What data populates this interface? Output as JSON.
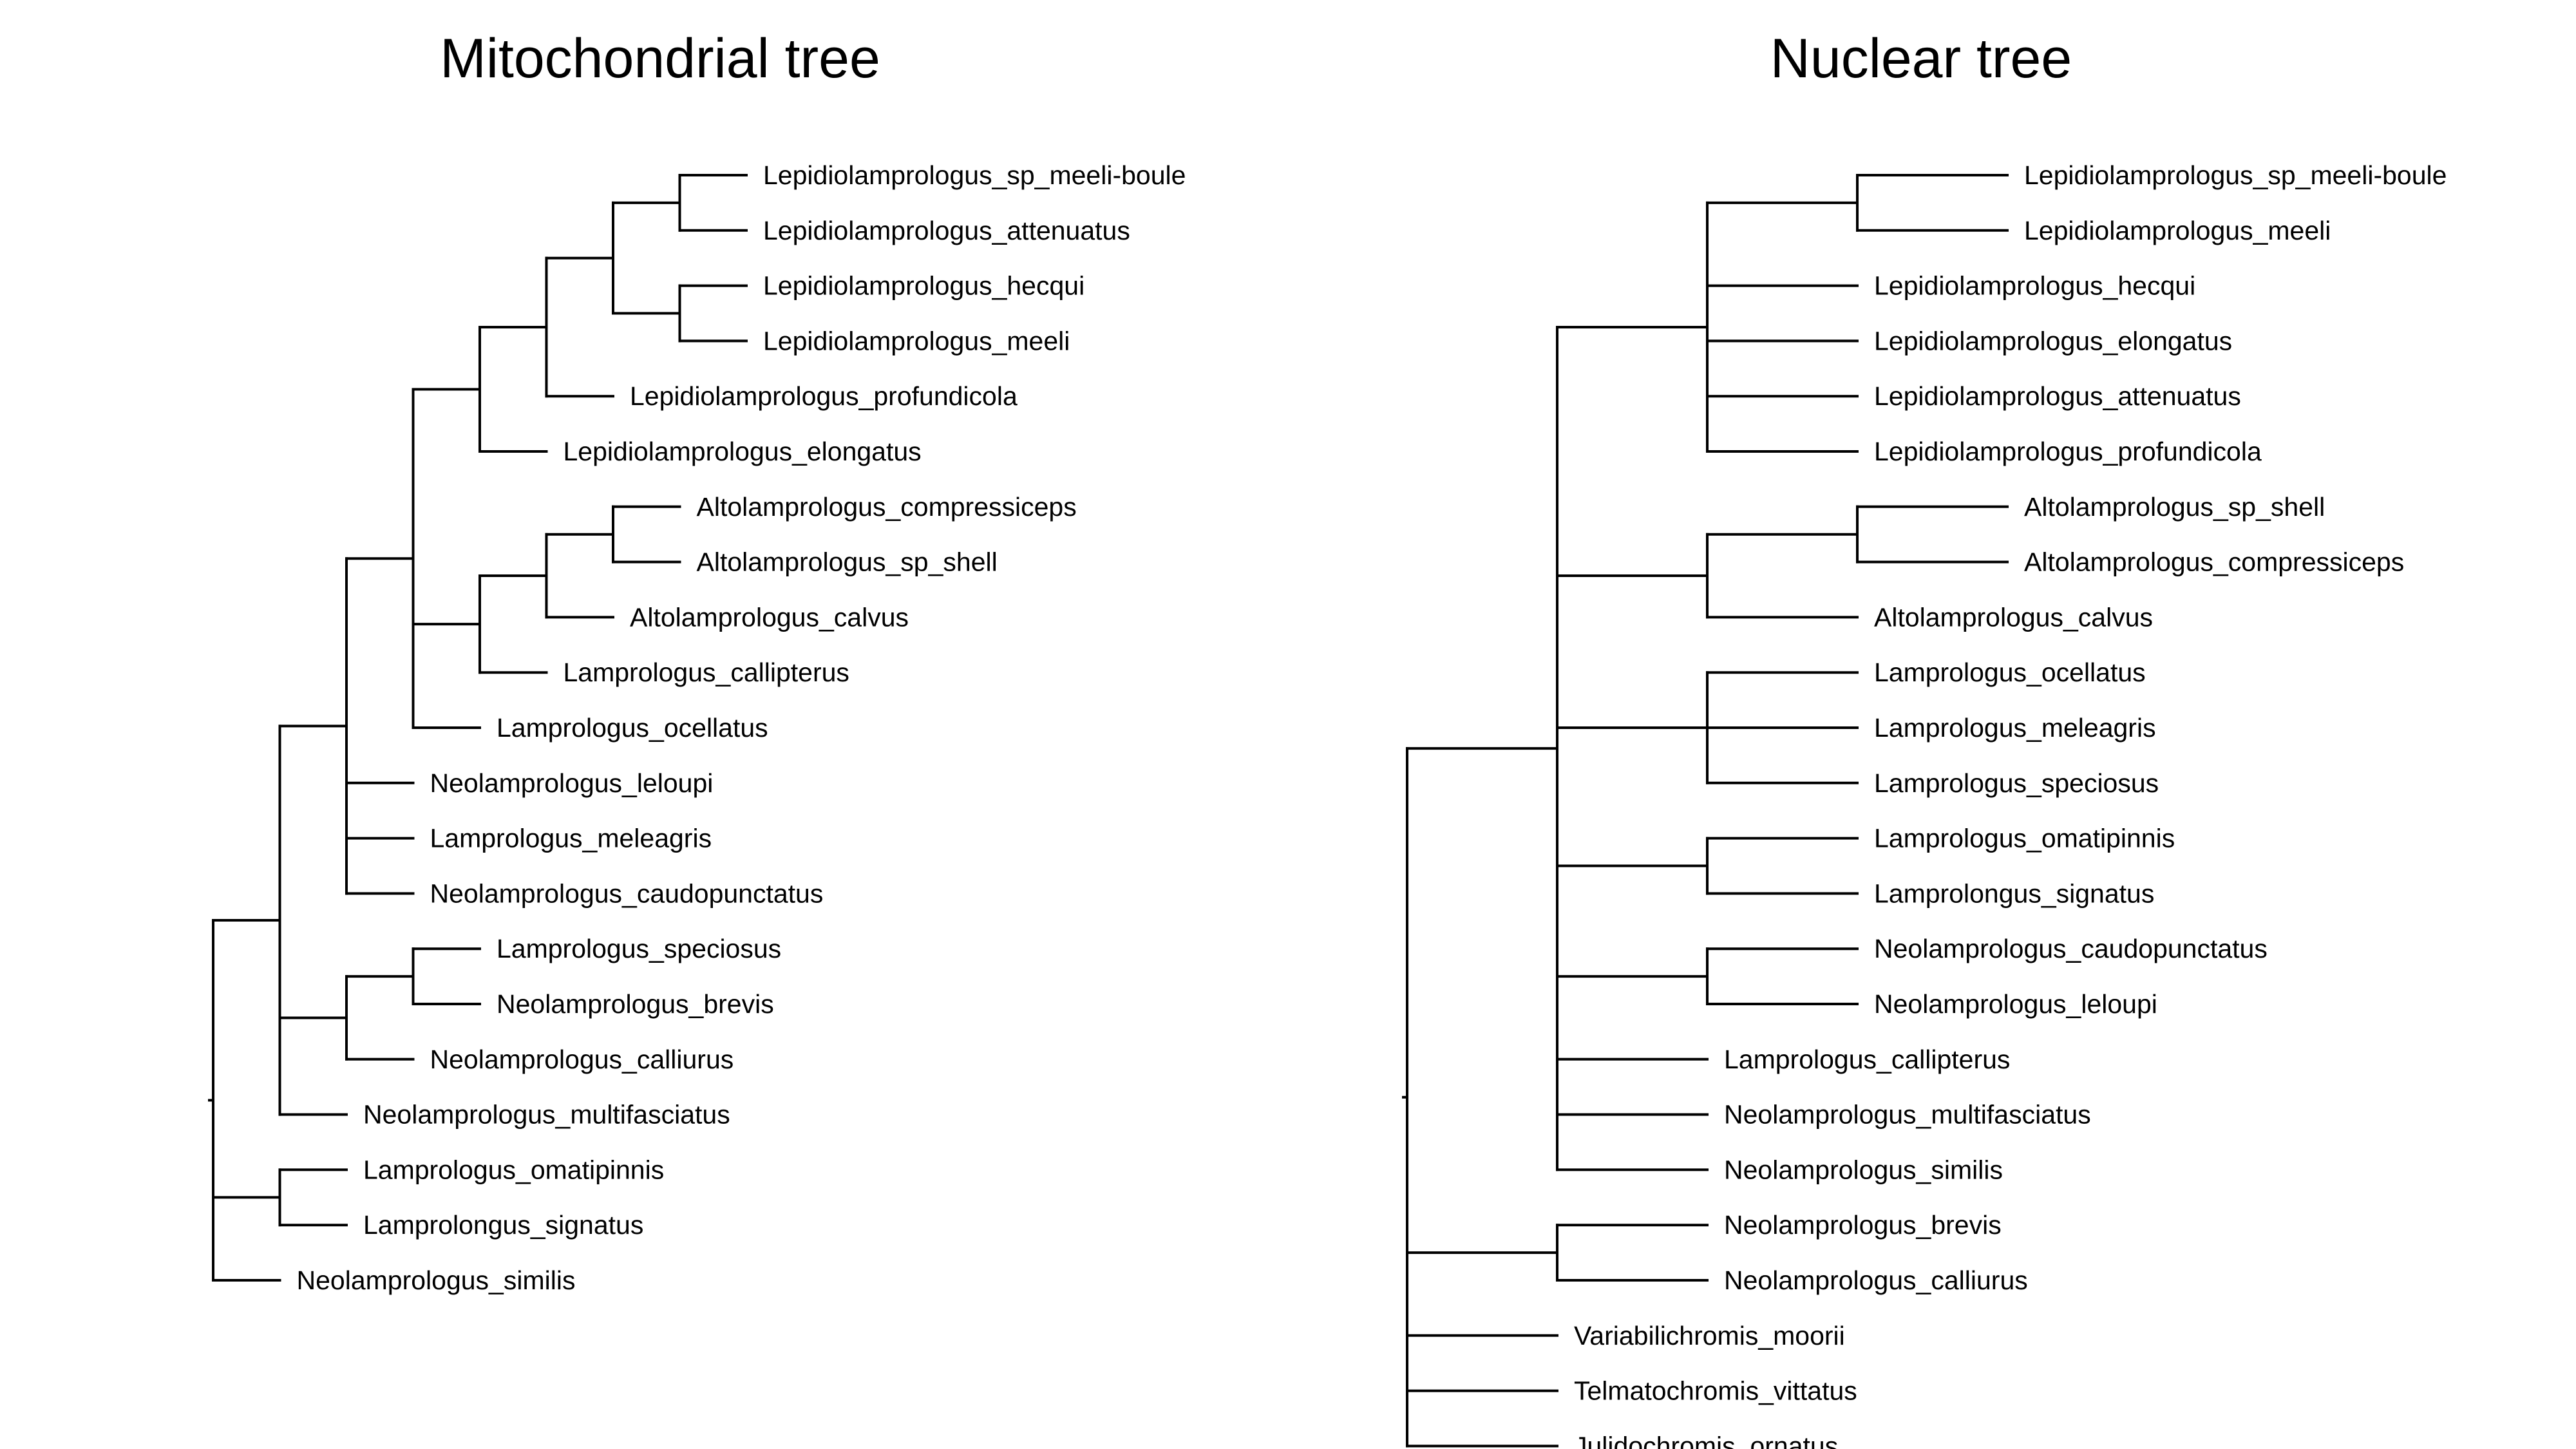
{
  "figure": {
    "panels": [
      {
        "id": "mito",
        "title": "Mitochondrial tree",
        "tree": {
          "c": [
            {
              "c": [
                {
                  "c": [
                    {
                      "c": [
                        {
                          "c": [
                            {
                              "c": [
                                {
                                  "c": [
                                    {
                                      "c": [
                                        {
                                          "n": "Lepidiolamprologus_sp_meeli-boule"
                                        },
                                        {
                                          "n": "Lepidiolamprologus_attenuatus"
                                        }
                                      ]
                                    },
                                    {
                                      "c": [
                                        {
                                          "n": "Lepidiolamprologus_hecqui"
                                        },
                                        {
                                          "n": "Lepidiolamprologus_meeli"
                                        }
                                      ]
                                    }
                                  ]
                                },
                                {
                                  "n": "Lepidiolamprologus_profundicola"
                                }
                              ]
                            },
                            {
                              "n": "Lepidiolamprologus_elongatus"
                            }
                          ]
                        },
                        {
                          "c": [
                            {
                              "c": [
                                {
                                  "c": [
                                    {
                                      "n": "Altolamprologus_compressiceps"
                                    },
                                    {
                                      "n": "Altolamprologus_sp_shell"
                                    }
                                  ]
                                },
                                {
                                  "n": "Altolamprologus_calvus"
                                }
                              ]
                            },
                            {
                              "n": "Lamprologus_callipterus"
                            }
                          ]
                        },
                        {
                          "n": "Lamprologus_ocellatus"
                        }
                      ]
                    },
                    {
                      "n": "Neolamprologus_leloupi"
                    },
                    {
                      "n": "Lamprologus_meleagris"
                    },
                    {
                      "n": "Neolamprologus_caudopunctatus"
                    }
                  ]
                },
                {
                  "c": [
                    {
                      "c": [
                        {
                          "n": "Lamprologus_speciosus"
                        },
                        {
                          "n": "Neolamprologus_brevis"
                        }
                      ]
                    },
                    {
                      "n": "Neolamprologus_calliurus"
                    }
                  ]
                },
                {
                  "n": "Neolamprologus_multifasciatus"
                }
              ]
            },
            {
              "c": [
                {
                  "n": "Lamprologus_omatipinnis"
                },
                {
                  "n": "Lamprolongus_signatus"
                }
              ]
            },
            {
              "n": "Neolamprologus_similis"
            }
          ]
        }
      },
      {
        "id": "nuclear",
        "title": "Nuclear tree",
        "tree": {
          "c": [
            {
              "c": [
                {
                  "c": [
                    {
                      "c": [
                        {
                          "n": "Lepidiolamprologus_sp_meeli-boule"
                        },
                        {
                          "n": "Lepidiolamprologus_meeli"
                        }
                      ]
                    },
                    {
                      "n": "Lepidiolamprologus_hecqui"
                    },
                    {
                      "n": "Lepidiolamprologus_elongatus"
                    },
                    {
                      "n": "Lepidiolamprologus_attenuatus"
                    },
                    {
                      "n": "Lepidiolamprologus_profundicola"
                    }
                  ]
                },
                {
                  "c": [
                    {
                      "c": [
                        {
                          "n": "Altolamprologus_sp_shell"
                        },
                        {
                          "n": "Altolamprologus_compressiceps"
                        }
                      ]
                    },
                    {
                      "n": "Altolamprologus_calvus"
                    }
                  ]
                },
                {
                  "c": [
                    {
                      "n": "Lamprologus_ocellatus"
                    },
                    {
                      "n": "Lamprologus_meleagris"
                    },
                    {
                      "n": "Lamprologus_speciosus"
                    }
                  ]
                },
                {
                  "c": [
                    {
                      "n": "Lamprologus_omatipinnis"
                    },
                    {
                      "n": "Lamprolongus_signatus"
                    }
                  ]
                },
                {
                  "c": [
                    {
                      "n": "Neolamprologus_caudopunctatus"
                    },
                    {
                      "n": "Neolamprologus_leloupi"
                    }
                  ]
                },
                {
                  "n": "Lamprologus_callipterus"
                },
                {
                  "n": "Neolamprologus_multifasciatus"
                },
                {
                  "n": "Neolamprologus_similis"
                }
              ]
            },
            {
              "c": [
                {
                  "n": "Neolamprologus_brevis"
                },
                {
                  "n": "Neolamprologus_calliurus"
                }
              ]
            },
            {
              "n": "Variabilichromis_moorii"
            },
            {
              "n": "Telmatochromis_vittatus"
            },
            {
              "n": "Julidochromis_ornatus"
            }
          ]
        }
      }
    ]
  }
}
